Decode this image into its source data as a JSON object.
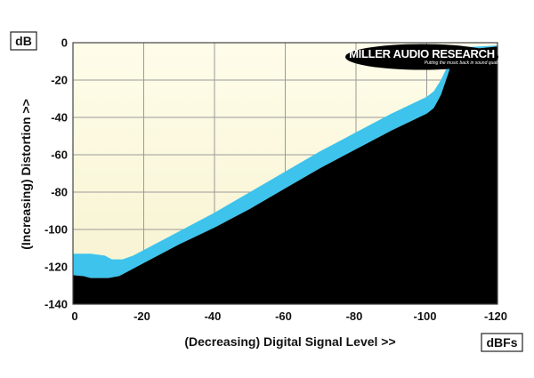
{
  "chart_data": {
    "type": "area",
    "ylabel": "(Increasing) Distortion >>",
    "xlabel": "(Decreasing) Digital Signal Level >>",
    "y_unit": "dB",
    "x_unit": "dBFs",
    "xlim": [
      0,
      -120
    ],
    "ylim": [
      -140,
      0
    ],
    "x_ticks": [
      0,
      -20,
      -40,
      -60,
      -80,
      -100,
      -120
    ],
    "y_ticks": [
      0,
      -20,
      -40,
      -60,
      -80,
      -100,
      -120,
      -140
    ],
    "x_tick_labels": [
      "0",
      "-20",
      "-40",
      "-60",
      "-80",
      "-100",
      "-120"
    ],
    "y_tick_labels": [
      "0",
      "-20",
      "-40",
      "-60",
      "-80",
      "-100",
      "-120",
      "-140"
    ],
    "grid": true,
    "series": [
      {
        "upper": {
          "x": [
            0,
            -5,
            -9,
            -11,
            -14,
            -17,
            -20,
            -30,
            -40,
            -50,
            -60,
            -70,
            -80,
            -90,
            -100,
            -102,
            -104,
            -106,
            -107,
            -108,
            -110,
            -115,
            -120
          ],
          "y": [
            -113,
            -113,
            -114,
            -116,
            -116,
            -114,
            -111,
            -101,
            -91,
            -80,
            -69,
            -58,
            -48,
            -38,
            -29,
            -26,
            -20,
            -12,
            -7,
            -3,
            -2.5,
            -2,
            -1.5
          ]
        },
        "lower": {
          "x": [
            0,
            -3,
            -5,
            -10,
            -13,
            -16,
            -20,
            -30,
            -40,
            -50,
            -60,
            -70,
            -80,
            -90,
            -100,
            -102,
            -104,
            -106,
            -107,
            -108,
            -110,
            -115,
            -120
          ],
          "y": [
            -124.5,
            -125,
            -126,
            -126,
            -125,
            -122,
            -118,
            -108,
            -99,
            -89,
            -78,
            -67,
            -57,
            -47,
            -38,
            -35,
            -28,
            -17,
            -11,
            -5,
            -4,
            -3,
            -2
          ]
        }
      }
    ],
    "colors": {
      "band": "#3dc3ec",
      "floor": "#000000",
      "background_top": "#fffdea",
      "background_bottom": "#f6f2cf",
      "grid": "#9a9a9a"
    }
  },
  "logo": {
    "name": "MILLER AUDIO RESEARCH",
    "tagline": "Putting the music back in sound quality"
  }
}
